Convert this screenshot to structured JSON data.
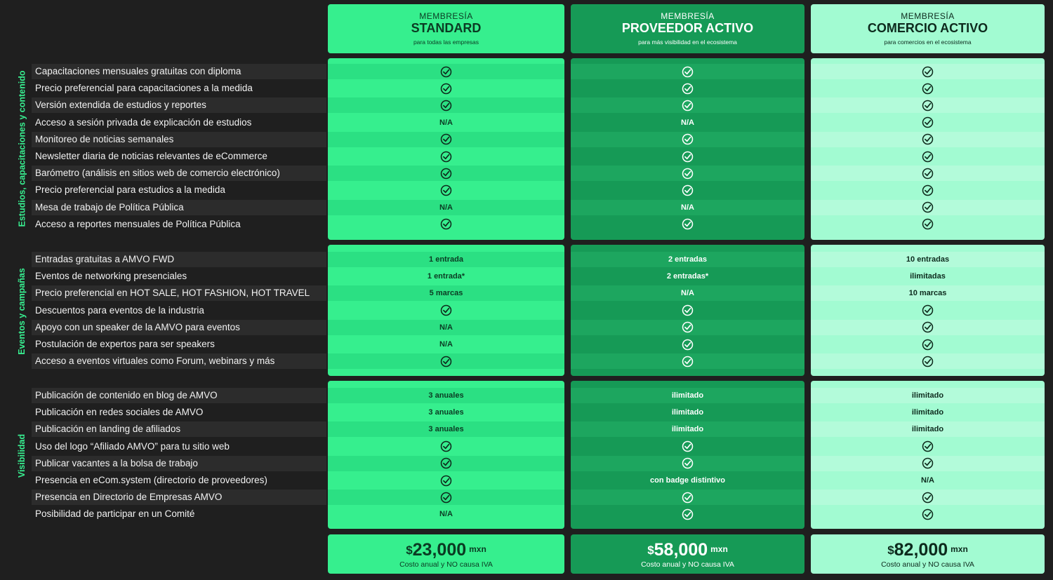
{
  "plans": [
    {
      "id": "std",
      "kicker": "MEMBRESÍA",
      "name": "STANDARD",
      "subtitle": "para todas las empresas",
      "currency": "$",
      "price": "23,000",
      "unit": "mxn",
      "price_note": "Costo anual y NO causa IVA"
    },
    {
      "id": "pro",
      "kicker": "MEMBRESÍA",
      "name": "PROVEEDOR ACTIVO",
      "subtitle": "para más visibilidad en el ecosistema",
      "currency": "$",
      "price": "58,000",
      "unit": "mxn",
      "price_note": "Costo anual y NO causa IVA"
    },
    {
      "id": "com",
      "kicker": "MEMBRESÍA",
      "name": "COMERCIO ACTIVO",
      "subtitle": "para comercios en el ecosistema",
      "currency": "$",
      "price": "82,000",
      "unit": "mxn",
      "price_note": "Costo anual y NO causa IVA"
    }
  ],
  "sections": [
    {
      "label": "Estudios, capacitaciones y contenido",
      "rows": [
        {
          "feature": "Capacitaciones mensuales gratuitas con diploma",
          "values": [
            "check",
            "check",
            "check"
          ]
        },
        {
          "feature": "Precio preferencial para capacitaciones a la medida",
          "values": [
            "check",
            "check",
            "check"
          ]
        },
        {
          "feature": "Versión extendida de estudios y reportes",
          "values": [
            "check",
            "check",
            "check"
          ]
        },
        {
          "feature": "Acceso a sesión privada de explicación de estudios",
          "values": [
            "N/A",
            "N/A",
            "check"
          ]
        },
        {
          "feature": "Monitoreo de noticias semanales",
          "values": [
            "check",
            "check",
            "check"
          ]
        },
        {
          "feature": "Newsletter diaria de noticias relevantes de eCommerce",
          "values": [
            "check",
            "check",
            "check"
          ]
        },
        {
          "feature": "Barómetro (análisis en sitios web de comercio electrónico)",
          "values": [
            "check",
            "check",
            "check"
          ]
        },
        {
          "feature": "Precio preferencial para estudios a la medida",
          "values": [
            "check",
            "check",
            "check"
          ]
        },
        {
          "feature": "Mesa de trabajo de Política Pública",
          "values": [
            "N/A",
            "N/A",
            "check"
          ]
        },
        {
          "feature": "Acceso a reportes mensuales de Política Pública",
          "values": [
            "check",
            "check",
            "check"
          ]
        }
      ]
    },
    {
      "label": "Eventos y campañas",
      "rows": [
        {
          "feature": "Entradas gratuitas a AMVO FWD",
          "values": [
            "1 entrada",
            "2 entradas",
            "10 entradas"
          ]
        },
        {
          "feature": "Eventos de networking presenciales",
          "values": [
            "1 entrada*",
            "2 entradas*",
            "ilimitadas"
          ]
        },
        {
          "feature": "Precio preferencial en HOT SALE, HOT FASHION, HOT TRAVEL",
          "values": [
            "5 marcas",
            "N/A",
            "10 marcas"
          ]
        },
        {
          "feature": "Descuentos para eventos de la industria",
          "values": [
            "check",
            "check",
            "check"
          ]
        },
        {
          "feature": "Apoyo con un speaker de la AMVO para eventos",
          "values": [
            "N/A",
            "check",
            "check"
          ]
        },
        {
          "feature": "Postulación de expertos para ser speakers",
          "values": [
            "N/A",
            "check",
            "check"
          ]
        },
        {
          "feature": "Acceso a eventos virtuales como Forum, webinars y más",
          "values": [
            "check",
            "check",
            "check"
          ]
        }
      ]
    },
    {
      "label": "Visibilidad",
      "rows": [
        {
          "feature": "Publicación de contenido en blog de AMVO",
          "values": [
            "3 anuales",
            "ilimitado",
            "ilimitado"
          ]
        },
        {
          "feature": "Publicación en redes sociales de AMVO",
          "values": [
            "3 anuales",
            "ilimitado",
            "ilimitado"
          ]
        },
        {
          "feature": "Publicación en landing de afiliados",
          "values": [
            "3 anuales",
            "ilimitado",
            "ilimitado"
          ]
        },
        {
          "feature": "Uso del logo “Afiliado AMVO” para tu sitio web",
          "values": [
            "check",
            "check",
            "check"
          ]
        },
        {
          "feature": "Publicar vacantes a la bolsa de trabajo",
          "values": [
            "check",
            "check",
            "check"
          ]
        },
        {
          "feature": "Presencia en eCom.system (directorio de proveedores)",
          "values": [
            "check",
            "con badge distintivo",
            "N/A"
          ]
        },
        {
          "feature": "Presencia en Directorio de Empresas AMVO",
          "values": [
            "check",
            "check",
            "check"
          ]
        },
        {
          "feature": "Posibilidad de participar en un Comité",
          "values": [
            "N/A",
            "check",
            "check"
          ]
        }
      ]
    }
  ],
  "icons": {
    "check": "check-circle-icon"
  },
  "colors": {
    "background": "#1f1f1f",
    "standard": "#36ef8e",
    "proveedor": "#169a56",
    "comercio": "#a2fbd2",
    "section_label": "#38f091"
  }
}
